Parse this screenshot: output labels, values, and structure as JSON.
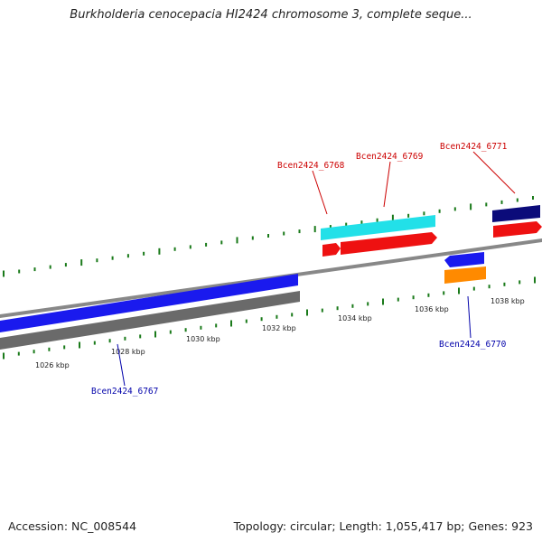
{
  "title": "Burkholderia cenocepacia HI2424 chromosome 3, complete seque...",
  "footer": {
    "accession": "Accession: NC_008544",
    "topology": "Topology: circular; Length: 1,055,417 bp; Genes: 923"
  },
  "colors": {
    "forward_label": "#cc0000",
    "reverse_label": "#0000aa",
    "tick": "#1a7a1a",
    "backbone": "#888888"
  },
  "ticks": [
    {
      "label": "1026 kbp"
    },
    {
      "label": "1028 kbp"
    },
    {
      "label": "1030 kbp"
    },
    {
      "label": "1032 kbp"
    },
    {
      "label": "1034 kbp"
    },
    {
      "label": "1036 kbp"
    },
    {
      "label": "1038 kbp"
    }
  ],
  "genes": [
    {
      "id": "Bcen2424_6767",
      "strand": "reverse",
      "color": "#1a1aee"
    },
    {
      "id": "Bcen2424_6768",
      "strand": "forward",
      "color": "#ee1111"
    },
    {
      "id": "Bcen2424_6769",
      "strand": "forward",
      "color": "#ee1111"
    },
    {
      "id": "Bcen2424_6770",
      "strand": "reverse",
      "color": "#1a1aee"
    },
    {
      "id": "Bcen2424_6771",
      "strand": "forward",
      "color": "#ee1111"
    }
  ],
  "feature_bars": [
    {
      "name": "cds-cyan",
      "color": "#22e0e8"
    },
    {
      "name": "cds-navy",
      "color": "#0b0b7a"
    },
    {
      "name": "cds-orange",
      "color": "#ff8a00"
    },
    {
      "name": "cds-gray",
      "color": "#6a6a6a"
    }
  ]
}
